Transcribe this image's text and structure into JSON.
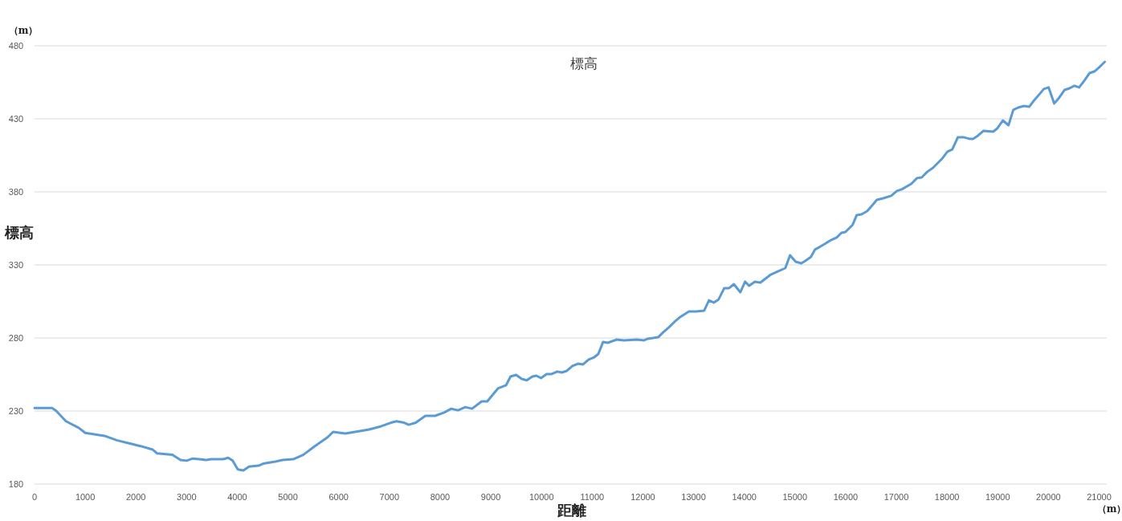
{
  "chart_data": {
    "type": "line",
    "title": "標高",
    "xlabel": "距離",
    "ylabel": "標高",
    "annotations": [
      "（m）",
      "（m）"
    ],
    "xlim": [
      0,
      21150
    ],
    "xticks": [
      0,
      1000,
      2000,
      3000,
      4000,
      5000,
      6000,
      7000,
      8000,
      9000,
      10000,
      11000,
      12000,
      13000,
      14000,
      15000,
      16000,
      17000,
      18000,
      19000,
      20000,
      21000
    ],
    "ylim": [
      180,
      480
    ],
    "yticks": [
      180,
      230,
      280,
      330,
      380,
      430,
      480
    ],
    "grid": "y",
    "marker": "none",
    "line_style": "solid",
    "series": [
      {
        "color": "#5b9bd5",
        "x": [
          0,
          350,
          430,
          620,
          870,
          1000,
          1380,
          1620,
          1850,
          2090,
          2330,
          2420,
          2720,
          2880,
          3000,
          3120,
          3250,
          3390,
          3480,
          3720,
          3820,
          3910,
          4010,
          4120,
          4230,
          4420,
          4510,
          4750,
          4890,
          5100,
          5300,
          5530,
          5780,
          5890,
          6130,
          6370,
          6600,
          6840,
          7030,
          7140,
          7290,
          7380,
          7520,
          7710,
          7900,
          8080,
          8220,
          8350,
          8500,
          8630,
          8820,
          8930,
          9140,
          9300,
          9390,
          9500,
          9610,
          9710,
          9820,
          9900,
          9990,
          10100,
          10200,
          10310,
          10400,
          10500,
          10610,
          10720,
          10820,
          10930,
          11040,
          11120,
          11215,
          11308,
          11483,
          11625,
          11878,
          12021,
          12100,
          12306,
          12401,
          12512,
          12623,
          12734,
          12908,
          13050,
          13209,
          13304,
          13399,
          13494,
          13605,
          13700,
          13795,
          13922,
          14016,
          14096,
          14207,
          14318,
          14523,
          14634,
          14809,
          14903,
          15014,
          15125,
          15204,
          15315,
          15395,
          15585,
          15711,
          15822,
          15917,
          15996,
          16139,
          16218,
          16313,
          16424,
          16535,
          16614,
          16741,
          16899,
          17010,
          17105,
          17295,
          17406,
          17501,
          17612,
          17723,
          17897,
          18008,
          18103,
          18214,
          18325,
          18436,
          18515,
          18610,
          18721,
          18911,
          18990,
          19101,
          19212,
          19307,
          19402,
          19513,
          19623,
          19718,
          19829,
          19908,
          20003,
          20114,
          20209,
          20320,
          20415,
          20510,
          20605,
          20700,
          20811,
          20906,
          21001,
          21112
        ],
        "values": [
          232,
          232,
          230,
          223,
          218.5,
          215,
          213,
          210,
          208,
          206,
          203.6,
          201,
          200,
          196.5,
          196,
          197.5,
          197,
          196.5,
          197,
          197,
          198,
          196,
          190,
          189.3,
          192,
          192.6,
          194,
          195.4,
          196.5,
          197,
          200,
          206,
          212,
          215.7,
          214.6,
          216,
          217.4,
          219.6,
          222,
          223,
          222,
          220.6,
          222,
          226.7,
          226.7,
          229,
          231.6,
          230.5,
          232.7,
          231.6,
          236.6,
          236.6,
          245.4,
          247.6,
          253.6,
          254.7,
          252,
          251,
          253.6,
          254.2,
          252.5,
          255.3,
          255.3,
          257,
          256.4,
          257.5,
          260.8,
          262.4,
          261.9,
          265.2,
          266.8,
          269,
          277.3,
          276.7,
          278.9,
          278.4,
          278.9,
          278.4,
          279.5,
          280.6,
          283.9,
          287.2,
          291,
          294.3,
          298.1,
          298.1,
          298.7,
          305.8,
          304.2,
          306.4,
          314.1,
          314.1,
          316.8,
          311.3,
          318.5,
          315.7,
          318.5,
          317.9,
          323.4,
          325.1,
          327.8,
          336.6,
          332.2,
          331.1,
          332.8,
          335.5,
          340.5,
          344.3,
          347,
          348.7,
          352,
          352.5,
          357.5,
          364.1,
          364.6,
          366.8,
          371.2,
          374.5,
          375.6,
          377.3,
          380.6,
          381.7,
          385.5,
          389.4,
          389.9,
          393.8,
          396.5,
          402.5,
          407.5,
          409.1,
          417.4,
          417.4,
          416.3,
          416.3,
          418.5,
          421.8,
          421.2,
          423.4,
          428.9,
          425.6,
          436.1,
          437.7,
          438.8,
          438.3,
          442.7,
          447.1,
          450.4,
          451.5,
          440.5,
          444.3,
          449.8,
          450.9,
          452.6,
          451.5,
          455.8,
          461.3,
          462.4,
          465.2,
          469
        ]
      }
    ]
  }
}
